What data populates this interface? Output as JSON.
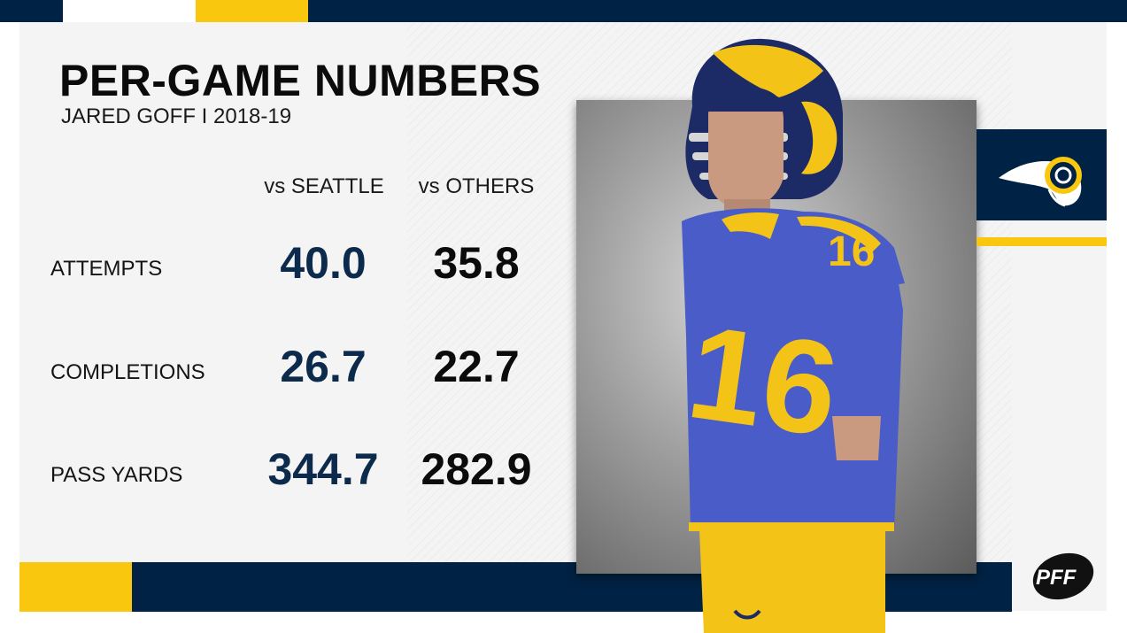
{
  "title": "PER-GAME NUMBERS",
  "subtitle": "JARED GOFF I 2018-19",
  "columns": [
    "vs SEATTLE",
    "vs OTHERS"
  ],
  "rows": [
    {
      "label": "ATTEMPTS",
      "values": [
        "40.0",
        "35.8"
      ]
    },
    {
      "label": "COMPLETIONS",
      "values": [
        "26.7",
        "22.7"
      ]
    },
    {
      "label": "PASS YARDS",
      "values": [
        "344.7",
        "282.9"
      ]
    }
  ],
  "jersey_number": "16",
  "brand": {
    "logo": "PFF"
  },
  "colors": {
    "navy": "#002244",
    "gold": "#f9c80e",
    "blue": "#4a5cc7",
    "value_navy": "#0c2a4b"
  },
  "icons": [
    "rams-logo-icon",
    "pff-logo-icon"
  ]
}
